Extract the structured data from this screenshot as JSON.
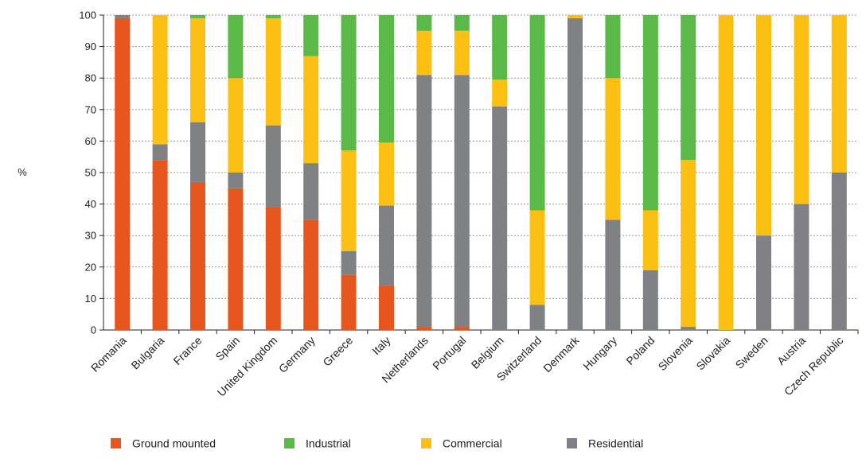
{
  "chart_data": {
    "type": "bar",
    "stacked": true,
    "title": "",
    "xlabel": "",
    "ylabel": "%",
    "ylim": [
      0,
      100
    ],
    "yticks": [
      0,
      10,
      20,
      30,
      40,
      50,
      60,
      70,
      80,
      90,
      100
    ],
    "grid": "horizontal dashed",
    "legend_position": "bottom",
    "categories": [
      "Romania",
      "Bulgaria",
      "France",
      "Spain",
      "United Kingdom",
      "Germany",
      "Greece",
      "Italy",
      "Netherlands",
      "Portugal",
      "Belgium",
      "Switzerland",
      "Denmark",
      "Hungary",
      "Poland",
      "Slovenia",
      "Slovakia",
      "Sweden",
      "Austria",
      "Czech Republic"
    ],
    "series": [
      {
        "name": "Ground mounted",
        "color": "#e8561f",
        "values": [
          99,
          54,
          47,
          45,
          39,
          35,
          17.5,
          14,
          1,
          1,
          0,
          0,
          0,
          0,
          0,
          0,
          0,
          0,
          0,
          0
        ]
      },
      {
        "name": "Residential",
        "color": "#808184",
        "values": [
          1,
          5,
          19,
          5,
          26,
          18,
          7.5,
          25.5,
          80,
          80,
          71,
          8,
          99,
          35,
          19,
          1,
          0,
          30,
          40,
          50
        ]
      },
      {
        "name": "Commercial",
        "color": "#fcc012",
        "values": [
          0,
          41,
          33,
          30,
          34,
          34,
          32,
          20,
          14,
          14,
          8.5,
          30,
          1,
          45,
          19,
          53,
          100,
          70,
          60,
          50
        ]
      },
      {
        "name": "Industrial",
        "color": "#5ab947",
        "values": [
          0,
          0,
          1,
          20,
          1,
          13,
          43,
          40.5,
          5,
          5,
          20.5,
          62,
          0,
          20,
          62,
          46,
          0,
          0,
          0,
          0
        ]
      }
    ],
    "legend_order": [
      "Ground mounted",
      "Industrial",
      "Commercial",
      "Residential"
    ]
  }
}
